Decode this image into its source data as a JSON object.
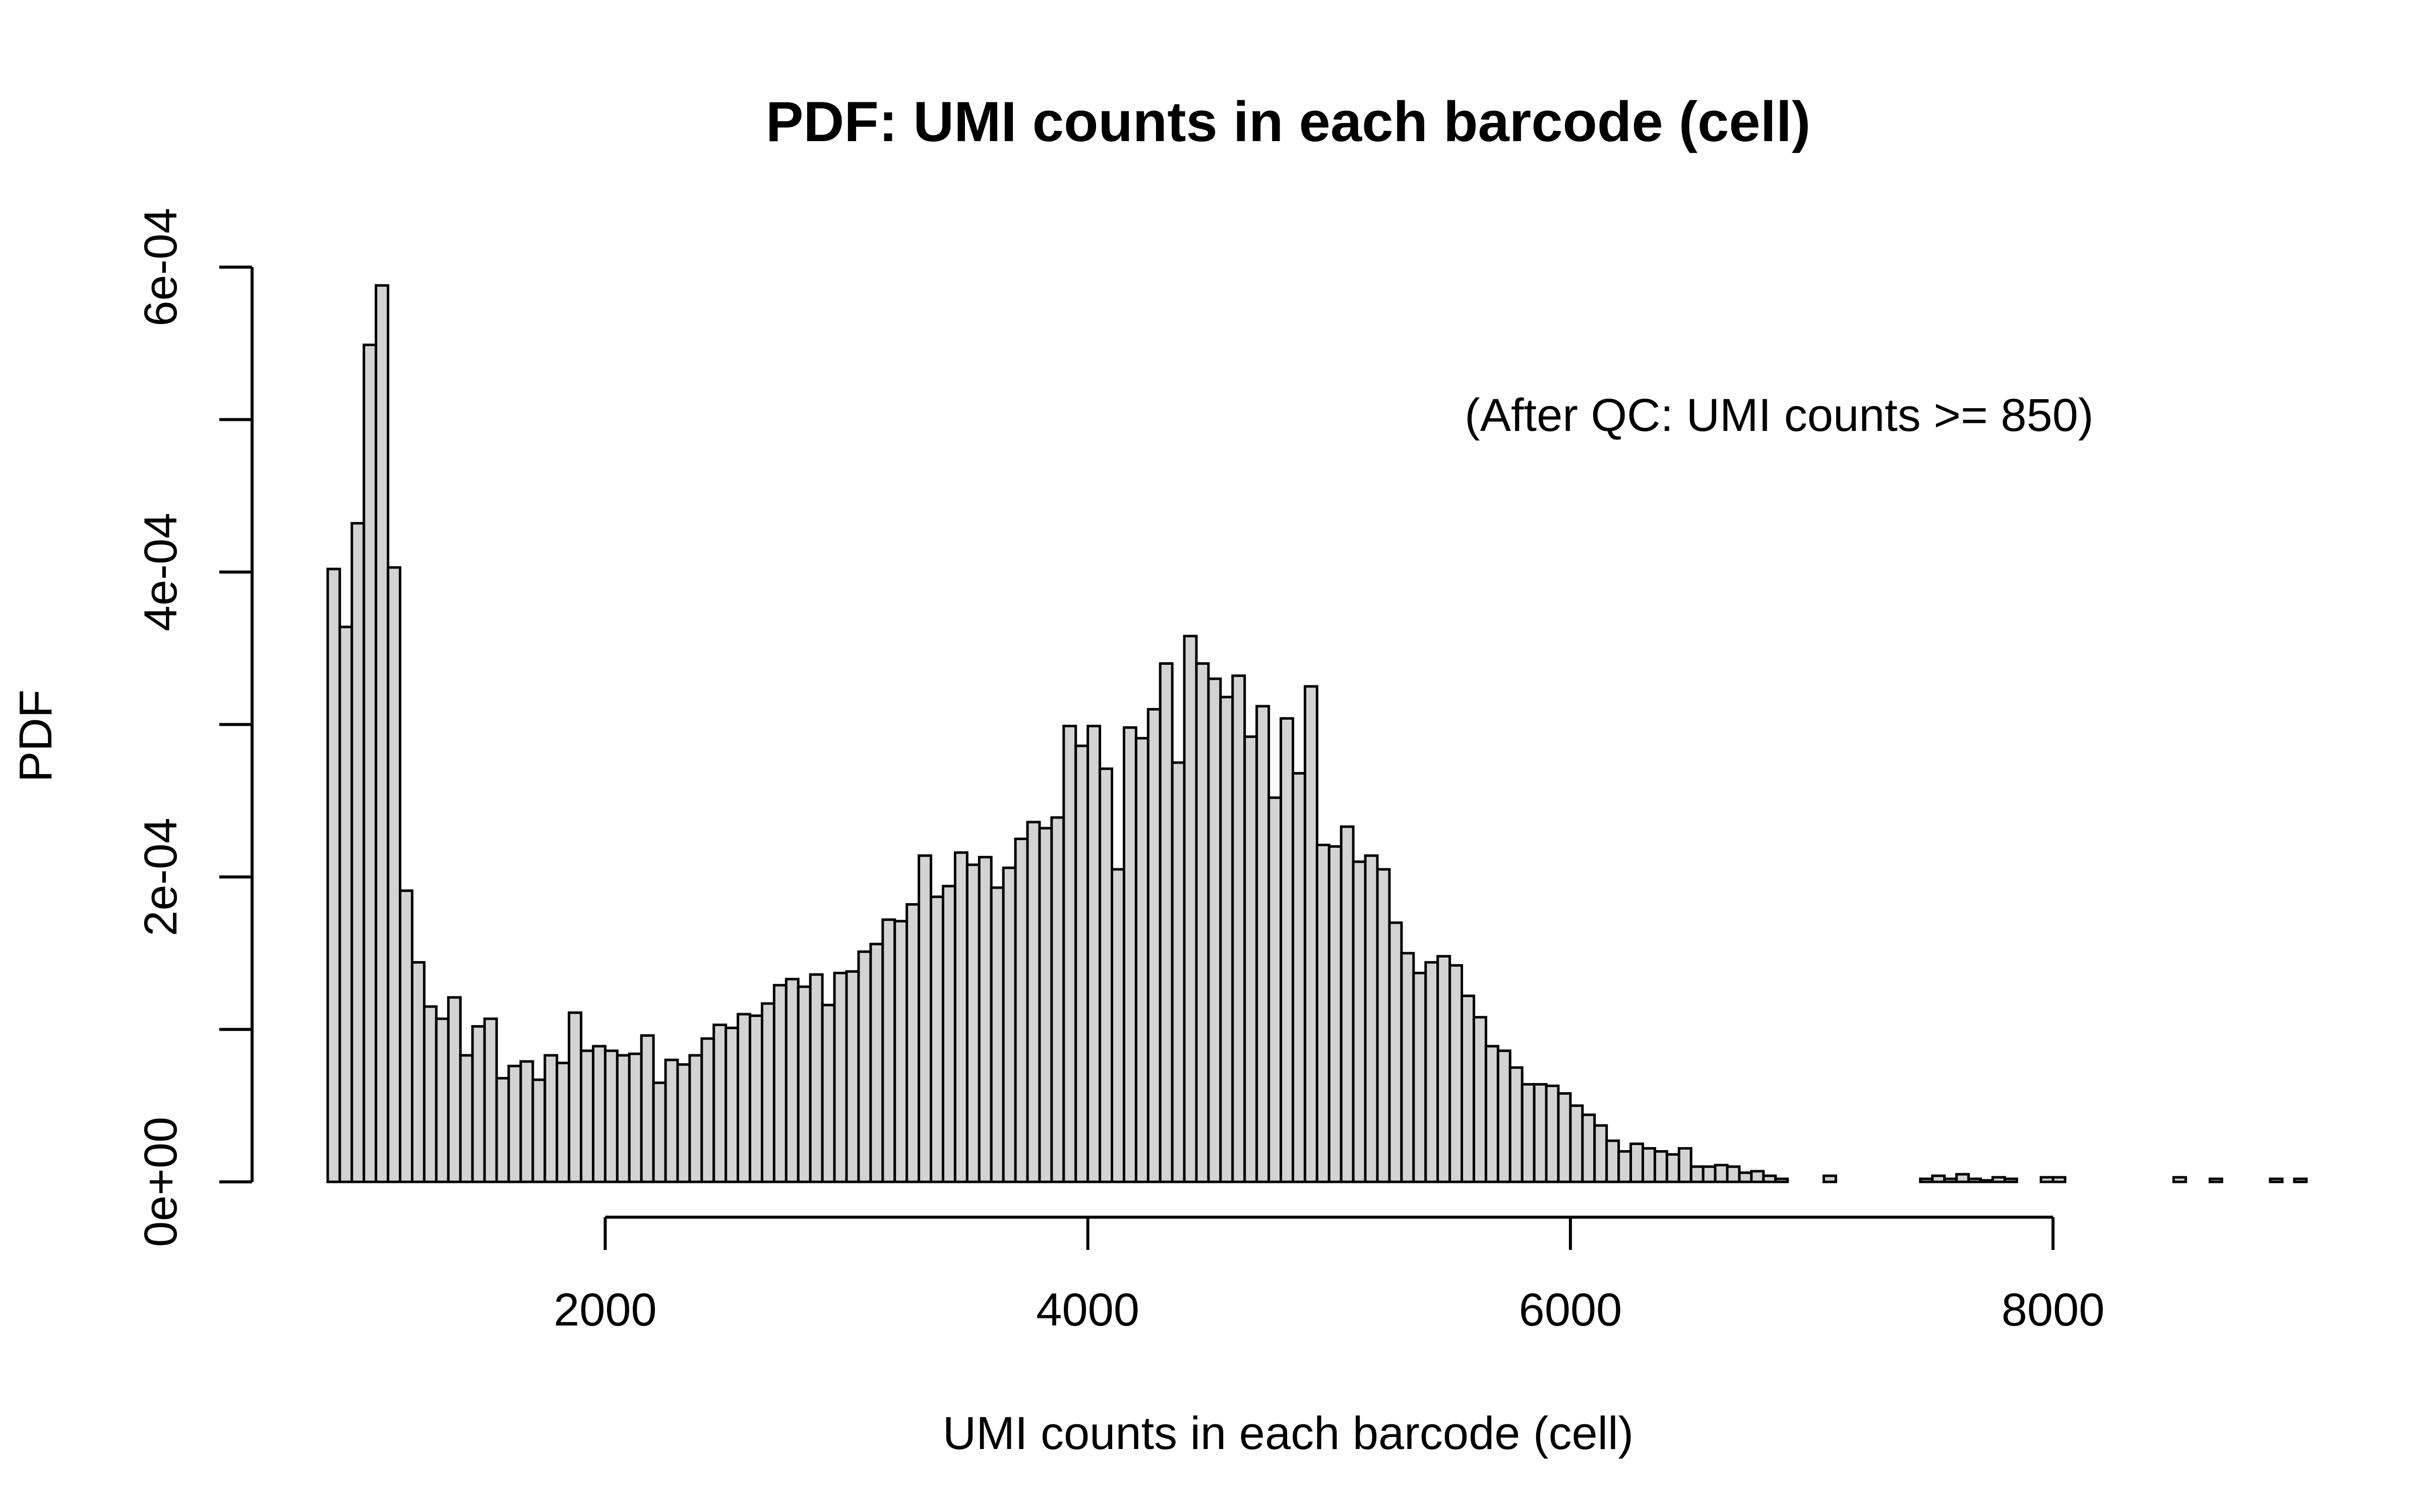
{
  "chart_data": {
    "type": "bar",
    "title": "PDF: UMI counts in each barcode (cell)",
    "xlabel": "UMI counts in each barcode (cell)",
    "ylabel": "PDF",
    "annotation": "(After QC: UMI counts >= 850)",
    "bin_start": 850,
    "bin_width": 50,
    "xlim": [
      850,
      8800
    ],
    "ylim": [
      0,
      0.0006
    ],
    "x_ticks": [
      2000,
      4000,
      6000,
      8000
    ],
    "x_tick_labels": [
      "2000",
      "4000",
      "6000",
      "8000"
    ],
    "y_ticks": [
      0,
      0.0001,
      0.0002,
      0.0003,
      0.0004,
      0.0005,
      0.0006
    ],
    "y_tick_labels": [
      "0e+00",
      "",
      "2e-04",
      "",
      "4e-04",
      "",
      "6e-04"
    ],
    "grid": false,
    "bar_color": "#d3d3d3",
    "edge_color": "#000000",
    "values": [
      0.000402,
      0.000364,
      0.000432,
      0.000549,
      0.000588,
      0.000403,
      0.000191,
      0.000144,
      0.000115,
      0.000107,
      0.000121,
      8.3e-05,
      0.000102,
      0.000107,
      6.8e-05,
      7.6e-05,
      7.9e-05,
      6.7e-05,
      8.3e-05,
      7.8e-05,
      0.000111,
      8.6e-05,
      8.9e-05,
      8.6e-05,
      8.3e-05,
      8.4e-05,
      9.6e-05,
      6.5e-05,
      8e-05,
      7.7e-05,
      8.3e-05,
      9.4e-05,
      0.000103,
      0.000101,
      0.00011,
      0.000109,
      0.000117,
      0.000129,
      0.000133,
      0.000128,
      0.000136,
      0.000116,
      0.000137,
      0.000138,
      0.000151,
      0.000156,
      0.000172,
      0.000171,
      0.000182,
      0.000214,
      0.000187,
      0.000194,
      0.000216,
      0.000208,
      0.000213,
      0.000193,
      0.000206,
      0.000225,
      0.000236,
      0.000232,
      0.000239,
      0.000299,
      0.000286,
      0.000299,
      0.000271,
      0.000205,
      0.000298,
      0.000291,
      0.00031,
      0.00034,
      0.000275,
      0.000358,
      0.00034,
      0.00033,
      0.000318,
      0.000332,
      0.000292,
      0.000312,
      0.000252,
      0.000304,
      0.000268,
      0.000325,
      0.000221,
      0.00022,
      0.000233,
      0.00021,
      0.000214,
      0.000205,
      0.00017,
      0.00015,
      0.000137,
      0.000144,
      0.000148,
      0.000142,
      0.000122,
      0.000108,
      8.9e-05,
      8.6e-05,
      7.5e-05,
      6.4e-05,
      6.4e-05,
      6.3e-05,
      5.8e-05,
      5e-05,
      4.4e-05,
      3.7e-05,
      2.7e-05,
      2e-05,
      2.5e-05,
      2.2e-05,
      2e-05,
      1.8e-05,
      2.2e-05,
      1e-05,
      1e-05,
      1.1e-05,
      1e-05,
      6e-06,
      7e-06,
      4e-06,
      2e-06,
      0,
      0,
      0,
      4e-06,
      0,
      0,
      0,
      0,
      0,
      0,
      0,
      2e-06,
      4e-06,
      2e-06,
      5e-06,
      2e-06,
      1e-06,
      3e-06,
      2e-06,
      0,
      0,
      3e-06,
      3e-06,
      0,
      0,
      0,
      0,
      0,
      0,
      0,
      0,
      0,
      3e-06,
      0,
      0,
      2e-06,
      0,
      0,
      0,
      0,
      2e-06,
      0,
      2e-06
    ]
  }
}
